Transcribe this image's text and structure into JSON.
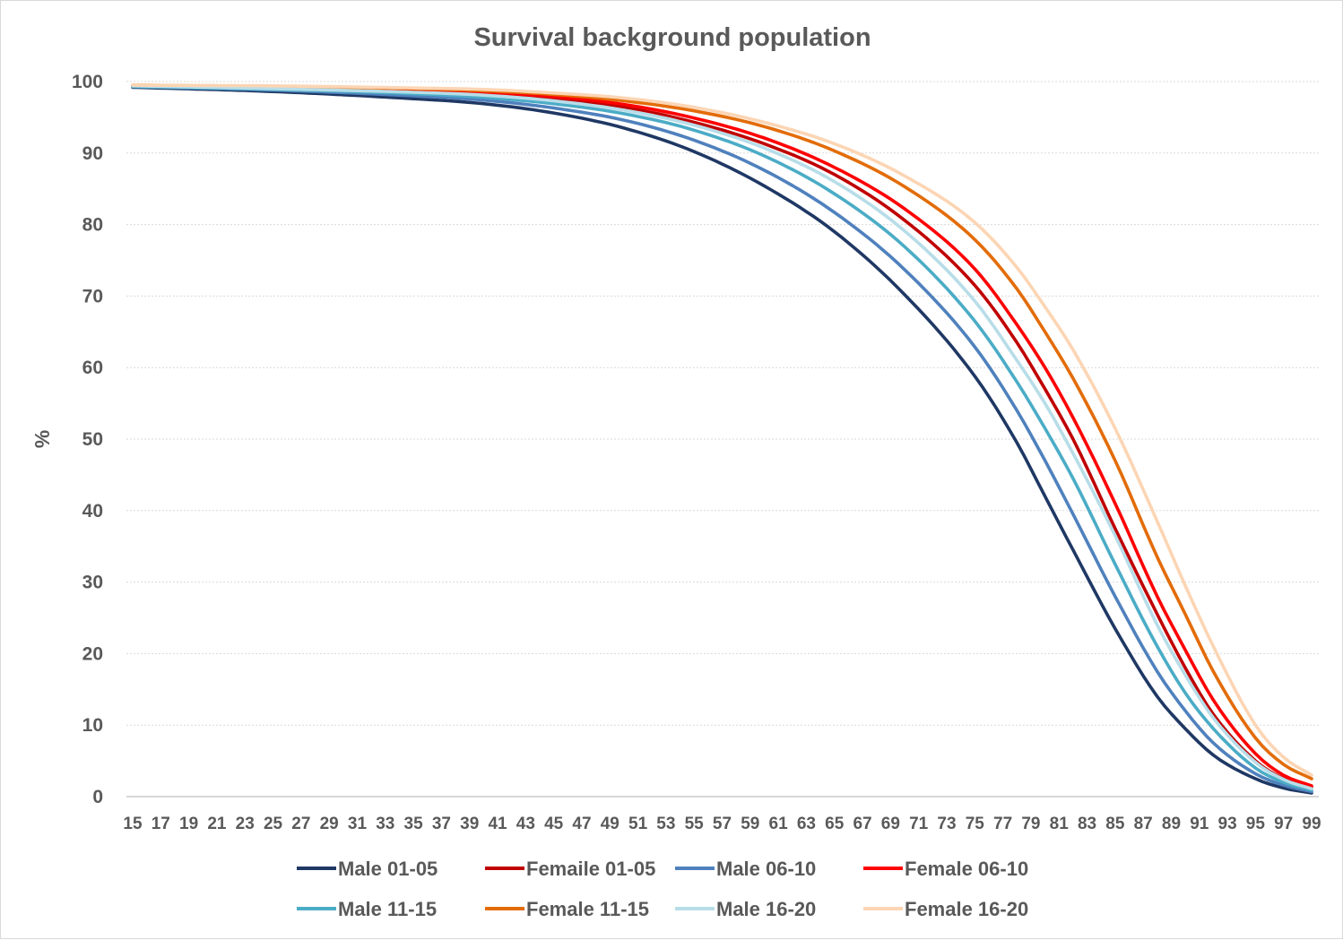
{
  "chart_data": {
    "type": "line",
    "title": "Survival background population",
    "xlabel": "",
    "ylabel": "%",
    "ylim": [
      0,
      100
    ],
    "yticks": [
      "0",
      "10",
      "20",
      "30",
      "40",
      "50",
      "60",
      "70",
      "80",
      "90",
      "100"
    ],
    "x_labels": [
      "15",
      "17",
      "19",
      "21",
      "23",
      "25",
      "27",
      "29",
      "31",
      "33",
      "35",
      "37",
      "39",
      "41",
      "43",
      "45",
      "47",
      "49",
      "51",
      "53",
      "55",
      "57",
      "59",
      "61",
      "63",
      "65",
      "67",
      "69",
      "71",
      "73",
      "75",
      "77",
      "79",
      "81",
      "83",
      "85",
      "87",
      "89",
      "91",
      "93",
      "95",
      "97",
      "99"
    ],
    "grid": true,
    "legend_position": "bottom",
    "series": [
      {
        "name": "Male 01-05",
        "color": "#1f3864",
        "x": [
          15,
          25,
          35,
          40,
          45,
          50,
          55,
          60,
          65,
          70,
          75,
          78,
          80,
          82,
          85,
          88,
          90,
          92,
          95,
          97,
          99
        ],
        "y": [
          99.2,
          98.6,
          97.6,
          96.9,
          95.6,
          93.5,
          90.2,
          85.4,
          79.0,
          70.2,
          58.8,
          49.5,
          42.0,
          34.5,
          23.5,
          14.0,
          9.5,
          5.8,
          2.5,
          1.2,
          0.5
        ]
      },
      {
        "name": "Femaile 01-05",
        "color": "#c00000",
        "x": [
          15,
          25,
          35,
          40,
          45,
          50,
          55,
          60,
          65,
          70,
          75,
          78,
          80,
          82,
          85,
          88,
          90,
          92,
          95,
          97,
          99
        ],
        "y": [
          99.4,
          99.1,
          98.7,
          98.3,
          97.6,
          96.4,
          94.3,
          91.3,
          87.0,
          80.6,
          71.5,
          63.5,
          57.0,
          50.0,
          37.5,
          25.5,
          18.0,
          11.5,
          5.0,
          2.5,
          1.3
        ]
      },
      {
        "name": "Male 06-10",
        "color": "#4f81bd",
        "x": [
          15,
          25,
          35,
          40,
          45,
          50,
          55,
          60,
          65,
          70,
          75,
          78,
          80,
          82,
          85,
          88,
          90,
          92,
          95,
          97,
          99
        ],
        "y": [
          99.3,
          98.8,
          98.0,
          97.4,
          96.3,
          94.6,
          91.8,
          87.6,
          81.7,
          73.7,
          62.9,
          54.0,
          47.0,
          39.5,
          28.0,
          17.5,
          12.0,
          7.5,
          3.2,
          1.6,
          0.7
        ]
      },
      {
        "name": "Female 06-10",
        "color": "#ff0000",
        "x": [
          15,
          25,
          35,
          40,
          45,
          50,
          55,
          60,
          65,
          70,
          75,
          78,
          80,
          82,
          85,
          88,
          90,
          92,
          95,
          97,
          99
        ],
        "y": [
          99.4,
          99.1,
          98.8,
          98.5,
          97.9,
          96.8,
          94.9,
          92.1,
          88.0,
          82.2,
          73.8,
          66.0,
          60.0,
          53.0,
          41.0,
          28.0,
          20.5,
          13.5,
          6.0,
          3.0,
          1.5
        ]
      },
      {
        "name": "Male 11-15",
        "color": "#4bacc6",
        "x": [
          15,
          25,
          35,
          40,
          45,
          50,
          55,
          60,
          65,
          70,
          75,
          78,
          80,
          82,
          85,
          88,
          90,
          92,
          95,
          97,
          99
        ],
        "y": [
          99.3,
          98.9,
          98.3,
          97.8,
          96.9,
          95.5,
          93.2,
          89.6,
          84.3,
          76.9,
          66.5,
          58.0,
          51.5,
          44.5,
          32.5,
          21.0,
          14.5,
          9.5,
          4.0,
          2.0,
          0.9
        ]
      },
      {
        "name": "Female 11-15",
        "color": "#e36c09",
        "x": [
          15,
          25,
          35,
          40,
          45,
          50,
          55,
          60,
          65,
          70,
          75,
          78,
          80,
          82,
          85,
          88,
          90,
          92,
          95,
          97,
          99
        ],
        "y": [
          99.5,
          99.3,
          99.0,
          98.7,
          98.2,
          97.3,
          95.9,
          93.7,
          90.3,
          85.3,
          77.9,
          71.0,
          65.0,
          58.5,
          47.0,
          33.5,
          25.5,
          17.5,
          8.2,
          4.5,
          2.5
        ]
      },
      {
        "name": "Male 16-20",
        "color": "#b7dde8",
        "x": [
          15,
          25,
          35,
          40,
          45,
          50,
          55,
          60,
          65,
          70,
          75,
          78,
          80,
          82,
          85,
          88,
          90,
          92,
          95,
          97,
          99
        ],
        "y": [
          99.4,
          99.0,
          98.5,
          98.1,
          97.3,
          96.0,
          93.9,
          90.7,
          86.0,
          79.1,
          69.3,
          61.0,
          55.0,
          48.0,
          36.5,
          24.0,
          17.0,
          11.0,
          4.8,
          2.4,
          1.1
        ]
      },
      {
        "name": "Female 16-20",
        "color": "#fcd5b4",
        "x": [
          15,
          25,
          35,
          40,
          45,
          50,
          55,
          60,
          65,
          70,
          75,
          78,
          80,
          82,
          85,
          88,
          90,
          92,
          95,
          97,
          99
        ],
        "y": [
          99.5,
          99.4,
          99.1,
          98.9,
          98.4,
          97.7,
          96.4,
          94.3,
          91.3,
          86.8,
          80.3,
          74.0,
          68.5,
          62.5,
          51.5,
          38.5,
          29.5,
          21.0,
          10.0,
          5.5,
          3.0
        ]
      }
    ]
  }
}
